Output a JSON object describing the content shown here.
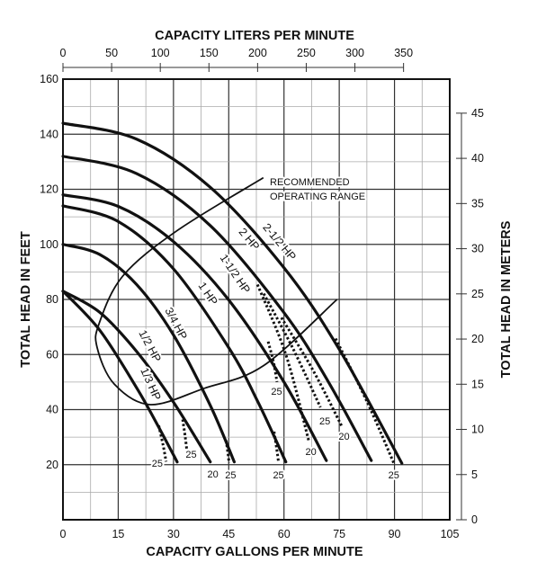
{
  "chart_data": {
    "type": "line",
    "title_top": "CAPACITY LITERS PER MINUTE",
    "xlabel": "CAPACITY GALLONS PER MINUTE",
    "ylabel": "TOTAL HEAD IN FEET",
    "ylabel_right": "TOTAL HEAD IN METERS",
    "xlim": [
      0,
      105
    ],
    "ylim": [
      0,
      160
    ],
    "x_ticks": [
      "0",
      "15",
      "30",
      "45",
      "60",
      "75",
      "90",
      "105"
    ],
    "x_tick_values": [
      0,
      15,
      30,
      45,
      60,
      75,
      90,
      105
    ],
    "y_ticks": [
      "20",
      "40",
      "60",
      "80",
      "100",
      "120",
      "140",
      "160"
    ],
    "y_tick_values": [
      20,
      40,
      60,
      80,
      100,
      120,
      140,
      160
    ],
    "top_ticks": [
      "0",
      "50",
      "100",
      "150",
      "200",
      "250",
      "300",
      "350"
    ],
    "top_tick_values": [
      0,
      50,
      100,
      150,
      200,
      250,
      300,
      350
    ],
    "right_ticks": [
      "0",
      "5",
      "10",
      "15",
      "20",
      "25",
      "30",
      "35",
      "40",
      "45"
    ],
    "right_tick_values": [
      0,
      5,
      10,
      15,
      20,
      25,
      30,
      35,
      40,
      45
    ],
    "grid": true,
    "series": [
      {
        "name": "2-1/2 HP",
        "label_at": [
          58,
          100
        ],
        "points": [
          [
            0,
            144
          ],
          [
            20,
            138.2
          ],
          [
            40,
            120.7
          ],
          [
            60,
            91.5
          ],
          [
            75,
            61.9
          ],
          [
            92,
            20.5
          ]
        ]
      },
      {
        "name": "2 HP",
        "label_at": [
          48.3,
          98.4
        ],
        "points": [
          [
            0,
            132
          ],
          [
            20,
            125.7
          ],
          [
            40,
            106.8
          ],
          [
            60,
            75.2
          ],
          [
            72,
            50.2
          ],
          [
            83.7,
            21.5
          ]
        ]
      },
      {
        "name": "1-1/2 HP",
        "label_at": [
          45.9,
          89.2
        ],
        "points": [
          [
            0,
            118
          ],
          [
            15,
            113.8
          ],
          [
            30,
            101
          ],
          [
            45,
            79.8
          ],
          [
            60,
            50
          ],
          [
            71.5,
            21.5
          ]
        ]
      },
      {
        "name": "1 HP",
        "label_at": [
          39,
          82
        ],
        "points": [
          [
            0,
            114
          ],
          [
            15,
            108.3
          ],
          [
            30,
            91.1
          ],
          [
            45,
            62.5
          ],
          [
            53,
            42.6
          ],
          [
            60.5,
            21
          ]
        ]
      },
      {
        "name": "3/4 HP",
        "label_at": [
          29.8,
          70.6
        ],
        "points": [
          [
            0,
            100
          ],
          [
            10,
            96.3
          ],
          [
            20,
            85.4
          ],
          [
            30,
            67.1
          ],
          [
            40,
            41.5
          ],
          [
            46.5,
            21
          ]
        ]
      },
      {
        "name": "1/2 HP",
        "label_at": [
          23.2,
          60.8
        ],
        "points": [
          [
            0,
            83
          ],
          [
            10,
            75.3
          ],
          [
            20,
            61.1
          ],
          [
            30,
            42.7
          ],
          [
            40,
            21
          ]
        ]
      },
      {
        "name": "1/3 HP",
        "label_at": [
          22.4,
          50.7
        ],
        "points": [
          [
            0,
            83
          ],
          [
            10,
            68.8
          ],
          [
            20,
            47.9
          ],
          [
            26,
            33.6
          ],
          [
            31,
            21
          ]
        ]
      }
    ],
    "dotted_branches": [
      {
        "points": [
          [
            26.0,
            34.2
          ],
          [
            27.2,
            27
          ],
          [
            28.0,
            21.1
          ]
        ]
      },
      {
        "points": [
          [
            32.5,
            36.4
          ],
          [
            33.2,
            30
          ],
          [
            33.7,
            24.4
          ]
        ]
      },
      {
        "points": [
          [
            44.3,
            28.8
          ],
          [
            44.8,
            24
          ],
          [
            45.1,
            20.6
          ]
        ]
      },
      {
        "points": [
          [
            55.7,
            64.7
          ],
          [
            57.2,
            57
          ],
          [
            58.1,
            50
          ]
        ]
      },
      {
        "points": [
          [
            57.3,
            32
          ],
          [
            58,
            26
          ],
          [
            58.5,
            21.1
          ]
        ]
      },
      {
        "points": [
          [
            52.8,
            85.4
          ],
          [
            60.5,
            60
          ],
          [
            66.7,
            28.8
          ]
        ]
      },
      {
        "points": [
          [
            54.5,
            82.1
          ],
          [
            62.5,
            62
          ],
          [
            69.9,
            40.8
          ]
        ]
      },
      {
        "points": [
          [
            59.3,
            73.4
          ],
          [
            68,
            54
          ],
          [
            75.6,
            34.2
          ]
        ]
      },
      {
        "points": [
          [
            74,
            65.8
          ],
          [
            82.5,
            43
          ],
          [
            89.8,
            20.6
          ]
        ]
      }
    ],
    "end_labels": [
      {
        "text": "25",
        "at": [
          25.6,
          20.6
        ]
      },
      {
        "text": "25",
        "at": [
          34.8,
          23.9
        ]
      },
      {
        "text": "20",
        "at": [
          40.7,
          16.7
        ]
      },
      {
        "text": "25",
        "at": [
          45.5,
          16.3
        ]
      },
      {
        "text": "25",
        "at": [
          58,
          46.7
        ]
      },
      {
        "text": "25",
        "at": [
          58.5,
          16.3
        ]
      },
      {
        "text": "20",
        "at": [
          67.3,
          24.8
        ]
      },
      {
        "text": "25",
        "at": [
          71.1,
          35.9
        ]
      },
      {
        "text": "20",
        "at": [
          76.3,
          30.4
        ]
      },
      {
        "text": "25",
        "at": [
          89.8,
          16.3
        ]
      }
    ],
    "operating_range": {
      "label_line1": "RECOMMENDED",
      "label_line2": "OPERATING RANGE",
      "points": [
        [
          54.4,
          124.2
        ],
        [
          31,
          105
        ],
        [
          16.3,
          88.6
        ],
        [
          9.8,
          71.2
        ],
        [
          9.3,
          62.4
        ],
        [
          13.9,
          49.3
        ],
        [
          23.7,
          41.8
        ],
        [
          38.3,
          47.7
        ],
        [
          54.4,
          55.9
        ],
        [
          74.4,
          80
        ]
      ]
    }
  }
}
